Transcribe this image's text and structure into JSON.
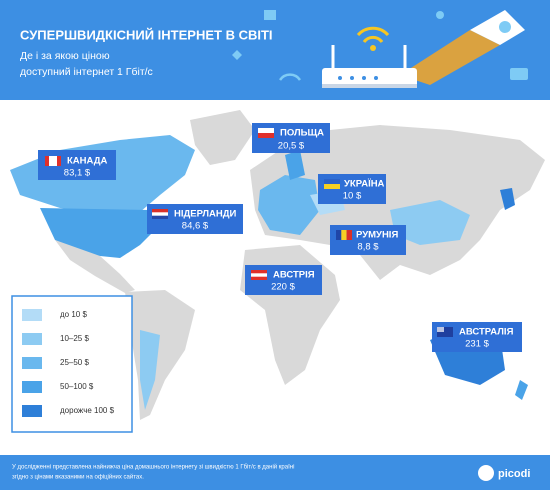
{
  "header": {
    "title": "СУПЕРШВИДКІСНИЙ ІНТЕРНЕТ В СВІТІ",
    "subtitle_lines": [
      "Де і за якою ціною",
      "доступний інтернет 1 Гбіт/с"
    ]
  },
  "callouts": [
    {
      "country": "КАНАДА",
      "price": "83,1 $"
    },
    {
      "country": "НІДЕРЛАНДИ",
      "price": "84,6 $"
    },
    {
      "country": "ПОЛЬЩА",
      "price": "20,5 $"
    },
    {
      "country": "УКРАЇНА",
      "price": "10 $"
    },
    {
      "country": "РУМУНІЯ",
      "price": "8,8 $"
    },
    {
      "country": "АВСТРІЯ",
      "price": "220 $"
    },
    {
      "country": "АВСТРАЛІЯ",
      "price": "231 $"
    }
  ],
  "legend": {
    "items": [
      "до 10 $",
      "10–25 $",
      "25–50 $",
      "50–100 $",
      "дорожче 100 $"
    ]
  },
  "footer": {
    "note_lines": [
      "У дослідженні представлена найнижча ціна домашнього інтернету зі швидкістю 1 Гбіт/с в даній країні",
      "згідно з цінами вказаними на офіційних сайтах."
    ],
    "brand": "picodi"
  }
}
